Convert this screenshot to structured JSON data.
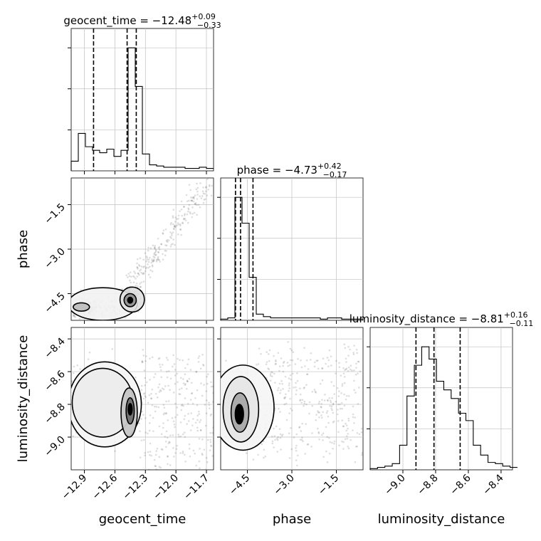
{
  "chart_data": {
    "type": "scatter",
    "subtype": "corner-plot",
    "parameters": [
      "geocent_time",
      "phase",
      "luminosity_distance"
    ],
    "axis_labels": {
      "geocent_time": "geocent_time",
      "phase": "phase",
      "luminosity_distance": "luminosity_distance"
    },
    "ranges": {
      "geocent_time": [
        -13.03,
        -11.63
      ],
      "phase": [
        -5.4,
        -0.6
      ],
      "luminosity_distance": [
        -9.2,
        -8.33
      ]
    },
    "ticks": {
      "geocent_time": {
        "values": [
          -12.9,
          -12.6,
          -12.3,
          -12.0,
          -11.7
        ],
        "labels": [
          "−12.9",
          "−12.6",
          "−12.3",
          "−12.0",
          "−11.7"
        ]
      },
      "phase": {
        "values": [
          -4.5,
          -3.0,
          -1.5
        ],
        "labels": [
          "−4.5",
          "−3.0",
          "−1.5"
        ]
      },
      "luminosity_distance": {
        "values": [
          -9.0,
          -8.8,
          -8.6,
          -8.4
        ],
        "labels": [
          "−9.0",
          "−8.8",
          "−8.6",
          "−8.4"
        ]
      }
    },
    "titles": {
      "geocent_time": {
        "main": "geocent_time = −12.48",
        "sup": "+0.09",
        "sub": "−0.33"
      },
      "phase": {
        "main": "phase = −4.73",
        "sup": "+0.42",
        "sub": "−0.17"
      },
      "luminosity_distance": {
        "main": "luminosity_distance = −8.81",
        "sup": "+0.16",
        "sub": "−0.11"
      }
    },
    "quantiles": {
      "geocent_time": [
        -12.81,
        -12.48,
        -12.39
      ],
      "phase": [
        -4.9,
        -4.73,
        -4.31
      ],
      "luminosity_distance": [
        -8.92,
        -8.81,
        -8.65
      ]
    },
    "histograms": {
      "geocent_time": {
        "edges": [
          -13.03,
          -12.96,
          -12.89,
          -12.82,
          -12.75,
          -12.68,
          -12.61,
          -12.54,
          -12.47,
          -12.4,
          -12.33,
          -12.26,
          -12.19,
          -12.12,
          -12.05,
          -11.98,
          -11.91,
          -11.84,
          -11.77,
          -11.7,
          -11.63
        ],
        "counts": [
          0.08,
          0.31,
          0.2,
          0.17,
          0.15,
          0.18,
          0.12,
          0.17,
          1.02,
          0.7,
          0.14,
          0.05,
          0.04,
          0.03,
          0.03,
          0.03,
          0.02,
          0.02,
          0.03,
          0.02
        ]
      },
      "phase": {
        "edges": [
          -5.4,
          -5.16,
          -4.92,
          -4.68,
          -4.44,
          -4.2,
          -3.96,
          -3.72,
          -3.48,
          -3.24,
          -3.0,
          -2.76,
          -2.52,
          -2.28,
          -2.04,
          -1.8,
          -1.56,
          -1.32,
          -1.08,
          -0.84,
          -0.6
        ],
        "counts": [
          0.01,
          0.02,
          1.0,
          0.79,
          0.35,
          0.05,
          0.03,
          0.02,
          0.02,
          0.02,
          0.02,
          0.02,
          0.02,
          0.02,
          0.01,
          0.02,
          0.02,
          0.01,
          0.01,
          0.01
        ]
      },
      "luminosity_distance": {
        "edges": [
          -9.2,
          -9.155,
          -9.11,
          -9.065,
          -9.02,
          -8.975,
          -8.93,
          -8.885,
          -8.84,
          -8.795,
          -8.75,
          -8.705,
          -8.66,
          -8.615,
          -8.57,
          -8.525,
          -8.48,
          -8.435,
          -8.39,
          -8.345,
          -8.3
        ],
        "counts": [
          0.01,
          0.02,
          0.03,
          0.05,
          0.2,
          0.6,
          0.85,
          1.0,
          0.9,
          0.72,
          0.65,
          0.58,
          0.46,
          0.4,
          0.2,
          0.12,
          0.06,
          0.05,
          0.03,
          0.02
        ]
      }
    },
    "grid": true,
    "dashed_quantile_lines": true
  }
}
